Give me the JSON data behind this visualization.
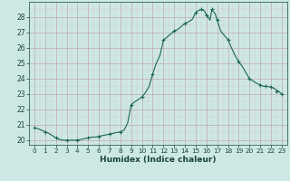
{
  "xlabel": "Humidex (Indice chaleur)",
  "ylabel": "",
  "background_color": "#cde8e4",
  "line_color": "#1a6655",
  "marker_color": "#1a6655",
  "xlim": [
    -0.5,
    23.5
  ],
  "ylim": [
    19.7,
    29.0
  ],
  "yticks": [
    20,
    21,
    22,
    23,
    24,
    25,
    26,
    27,
    28
  ],
  "xticks": [
    0,
    1,
    2,
    3,
    4,
    5,
    6,
    7,
    8,
    9,
    10,
    11,
    12,
    13,
    14,
    15,
    16,
    17,
    18,
    19,
    20,
    21,
    22,
    23
  ],
  "x": [
    0,
    0.33,
    0.67,
    1,
    1.33,
    1.67,
    2,
    2.33,
    2.67,
    3,
    3.33,
    3.67,
    4,
    4.33,
    4.67,
    5,
    5.33,
    5.67,
    6,
    6.33,
    6.67,
    7,
    7.33,
    7.67,
    8,
    8.33,
    8.67,
    9,
    9.33,
    9.67,
    10,
    10.33,
    10.67,
    11,
    11.33,
    11.67,
    12,
    12.33,
    12.67,
    13,
    13.33,
    13.67,
    14,
    14.33,
    14.67,
    15,
    15.17,
    15.33,
    15.5,
    15.67,
    15.83,
    16,
    16.17,
    16.33,
    16.5,
    16.67,
    16.83,
    17,
    17.33,
    17.67,
    18,
    18.33,
    18.67,
    19,
    19.33,
    19.67,
    20,
    20.33,
    20.67,
    21,
    21.33,
    21.67,
    22,
    22.33,
    22.67,
    23
  ],
  "y": [
    20.8,
    20.75,
    20.65,
    20.55,
    20.45,
    20.3,
    20.15,
    20.05,
    20.0,
    20.0,
    20.0,
    20.0,
    20.0,
    20.05,
    20.1,
    20.15,
    20.2,
    20.2,
    20.25,
    20.3,
    20.35,
    20.4,
    20.45,
    20.5,
    20.55,
    20.65,
    21.1,
    22.3,
    22.5,
    22.65,
    22.8,
    23.1,
    23.5,
    24.3,
    25.0,
    25.5,
    26.5,
    26.7,
    26.9,
    27.1,
    27.2,
    27.4,
    27.6,
    27.7,
    27.85,
    28.3,
    28.4,
    28.45,
    28.5,
    28.45,
    28.4,
    28.1,
    28.0,
    27.8,
    28.5,
    28.35,
    28.2,
    27.8,
    27.1,
    26.8,
    26.55,
    26.0,
    25.5,
    25.1,
    24.8,
    24.4,
    24.0,
    23.85,
    23.7,
    23.6,
    23.5,
    23.5,
    23.45,
    23.35,
    23.2,
    23.0
  ],
  "marker_x": [
    0,
    1,
    2,
    3,
    4,
    5,
    6,
    7,
    8,
    9,
    10,
    11,
    12,
    13,
    14,
    15,
    15.5,
    16,
    16.5,
    17,
    18,
    19,
    20,
    21,
    21.5,
    22,
    22.5,
    23
  ],
  "marker_y": [
    20.8,
    20.55,
    20.15,
    20.0,
    20.0,
    20.15,
    20.25,
    20.4,
    20.55,
    22.3,
    22.8,
    24.3,
    26.5,
    27.1,
    27.6,
    28.3,
    28.5,
    28.1,
    28.5,
    27.8,
    26.55,
    25.1,
    24.0,
    23.6,
    23.5,
    23.45,
    23.2,
    23.0
  ]
}
